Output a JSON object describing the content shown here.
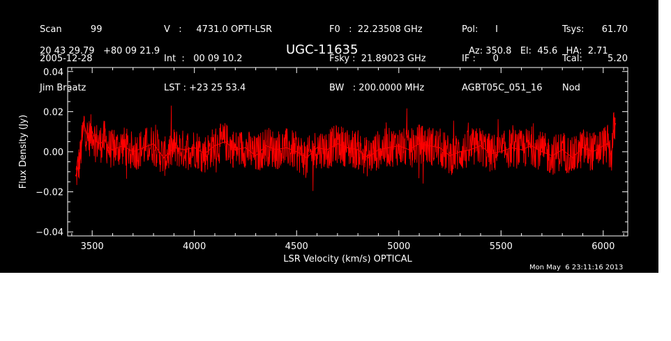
{
  "header": {
    "col1": [
      "Scan          99",
      "2005-12-28",
      "Jim Braatz"
    ],
    "col2": [
      "V   :     4731.0 OPTI-LSR",
      "Int  :   00 09 10.2",
      "LST : +23 25 53.4"
    ],
    "col3": [
      "F0   :  22.23508 GHz",
      "Fsky :  21.89023 GHz",
      "BW   : 200.0000 MHz"
    ],
    "col4": [
      "Pol:      I",
      "IF :      0",
      "AGBT05C_051_16"
    ],
    "col5a": [
      "Tsys:",
      "Tcal:",
      "Nod"
    ],
    "col5b": [
      "61.70",
      "5.20",
      ""
    ],
    "coords": "20 43 29.79   +80 09 21.9",
    "source": "UGC-11635",
    "azel": "Az: 350.8   El:  45.6   HA:  2.71",
    "timestamp": "Mon May  6 23:11:16 2013"
  },
  "colors": {
    "background": "#000000",
    "axes": "#ffffff",
    "trace": "#ff0000"
  },
  "chart_data": {
    "type": "line",
    "title": "UGC-11635",
    "xlabel": "LSR Velocity (km/s) OPTICAL",
    "ylabel": "Flux Density (Jy)",
    "xlim": [
      3380,
      6120
    ],
    "ylim": [
      -0.042,
      0.042
    ],
    "x_ticks": [
      3500,
      4000,
      4500,
      5000,
      5500,
      6000
    ],
    "x_tick_labels": [
      "3500",
      "4000",
      "4500",
      "5000",
      "5500",
      "6000"
    ],
    "y_ticks": [
      -0.04,
      -0.02,
      0.0,
      0.02,
      0.04
    ],
    "y_tick_labels": [
      "−0.04",
      "−0.02",
      "0.00",
      "0.02",
      "0.04"
    ],
    "series": [
      {
        "color": "#ff0000",
        "x": [
          3420,
          3440,
          3460,
          3480,
          3500,
          3520,
          3540,
          3560,
          3580,
          3600,
          3650,
          3700,
          3750,
          3800,
          3850,
          3900,
          3950,
          4000,
          4050,
          4100,
          4150,
          4200,
          4250,
          4300,
          4350,
          4400,
          4450,
          4500,
          4550,
          4600,
          4650,
          4700,
          4750,
          4800,
          4850,
          4900,
          4950,
          5000,
          5050,
          5100,
          5150,
          5200,
          5250,
          5300,
          5350,
          5400,
          5450,
          5500,
          5550,
          5600,
          5650,
          5700,
          5750,
          5800,
          5850,
          5900,
          5950,
          6000,
          6020,
          6040,
          6050,
          6060
        ],
        "y": [
          -0.012,
          -0.004,
          0.014,
          0.006,
          0.01,
          0.005,
          0.004,
          0.006,
          0.002,
          0.001,
          0.003,
          0.0,
          0.002,
          0.004,
          -0.003,
          0.002,
          0.001,
          0.002,
          -0.001,
          0.003,
          0.005,
          0.001,
          0.002,
          -0.002,
          0.003,
          0.001,
          0.002,
          0.0,
          -0.003,
          0.002,
          0.001,
          0.004,
          0.002,
          0.001,
          -0.003,
          0.001,
          0.002,
          0.003,
          0.001,
          0.004,
          0.003,
          0.002,
          -0.002,
          0.0,
          0.001,
          0.003,
          -0.001,
          0.0,
          0.002,
          0.001,
          0.003,
          0.0,
          -0.002,
          0.001,
          -0.003,
          0.002,
          0.0,
          0.003,
          0.004,
          -0.002,
          0.01,
          0.014
        ]
      }
    ]
  }
}
